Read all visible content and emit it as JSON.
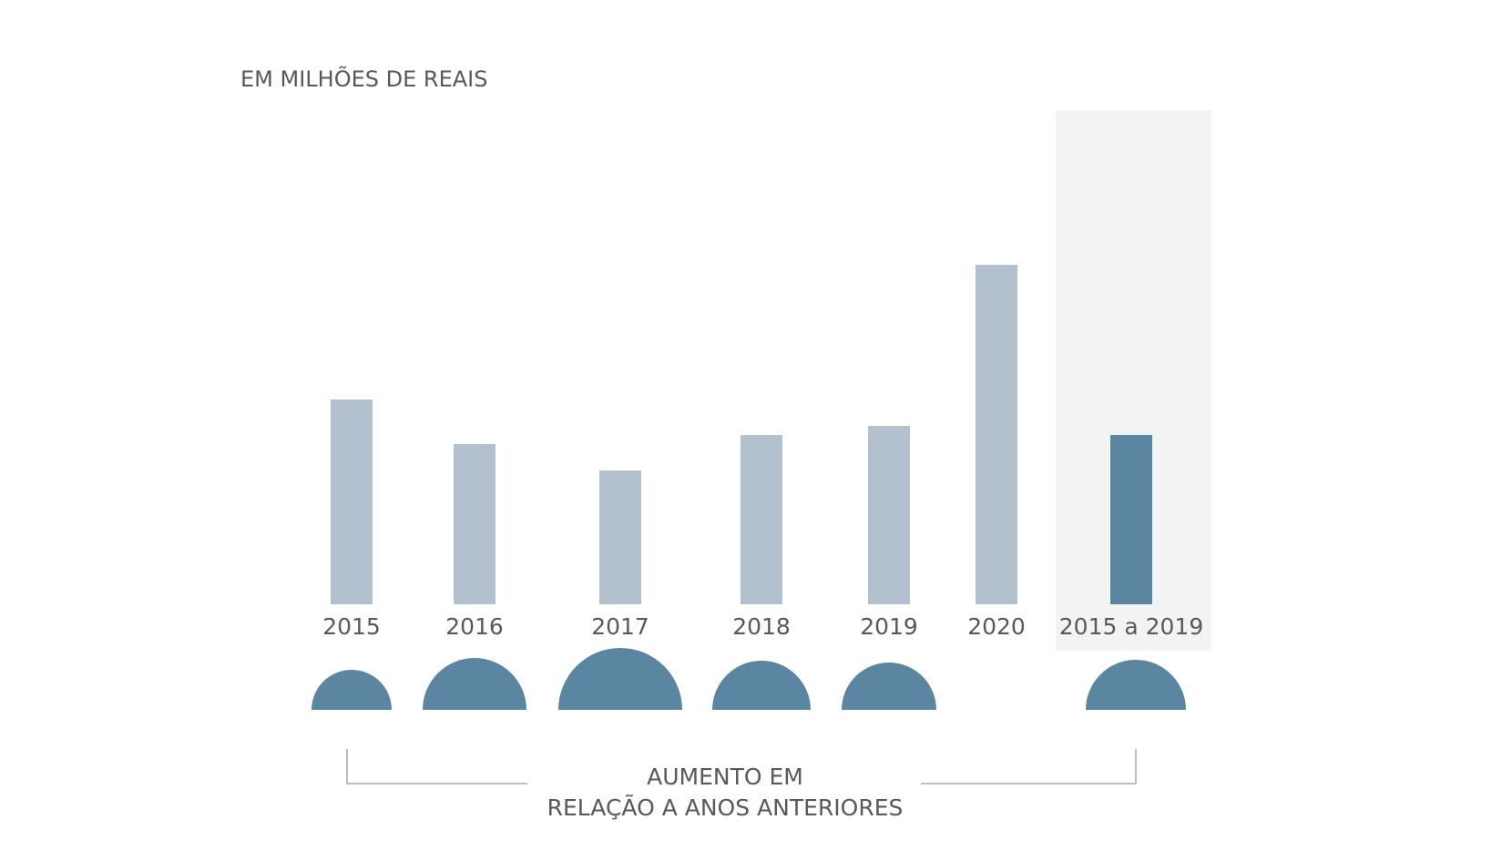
{
  "chart_data": {
    "type": "bar",
    "unit_label": "EM MILHÕES DE REAIS",
    "categories": [
      "2015",
      "2016",
      "2017",
      "2018",
      "2019",
      "2020",
      "2015 a 2019"
    ],
    "values": [
      225,
      176,
      147,
      186,
      196,
      373,
      186
    ],
    "highlight_category": "2015 a 2019",
    "increase_indicators": [
      {
        "category": "2015",
        "value": 44
      },
      {
        "category": "2016",
        "value": 57
      },
      {
        "category": "2017",
        "value": 68
      },
      {
        "category": "2018",
        "value": 54
      },
      {
        "category": "2019",
        "value": 52
      },
      {
        "category": "2015 a 2019",
        "value": 55
      }
    ],
    "bracket_label_lines": [
      "AUMENTO EM",
      "RELAÇÃO A ANOS ANTERIORES"
    ],
    "colors": {
      "bar": "#b3c1ce",
      "highlight_bar": "#5b86a1",
      "indicator": "#5b86a1",
      "highlight_background": "#f3f3f3",
      "text": "#555a5e",
      "bracket": "#a7a9ab"
    }
  }
}
